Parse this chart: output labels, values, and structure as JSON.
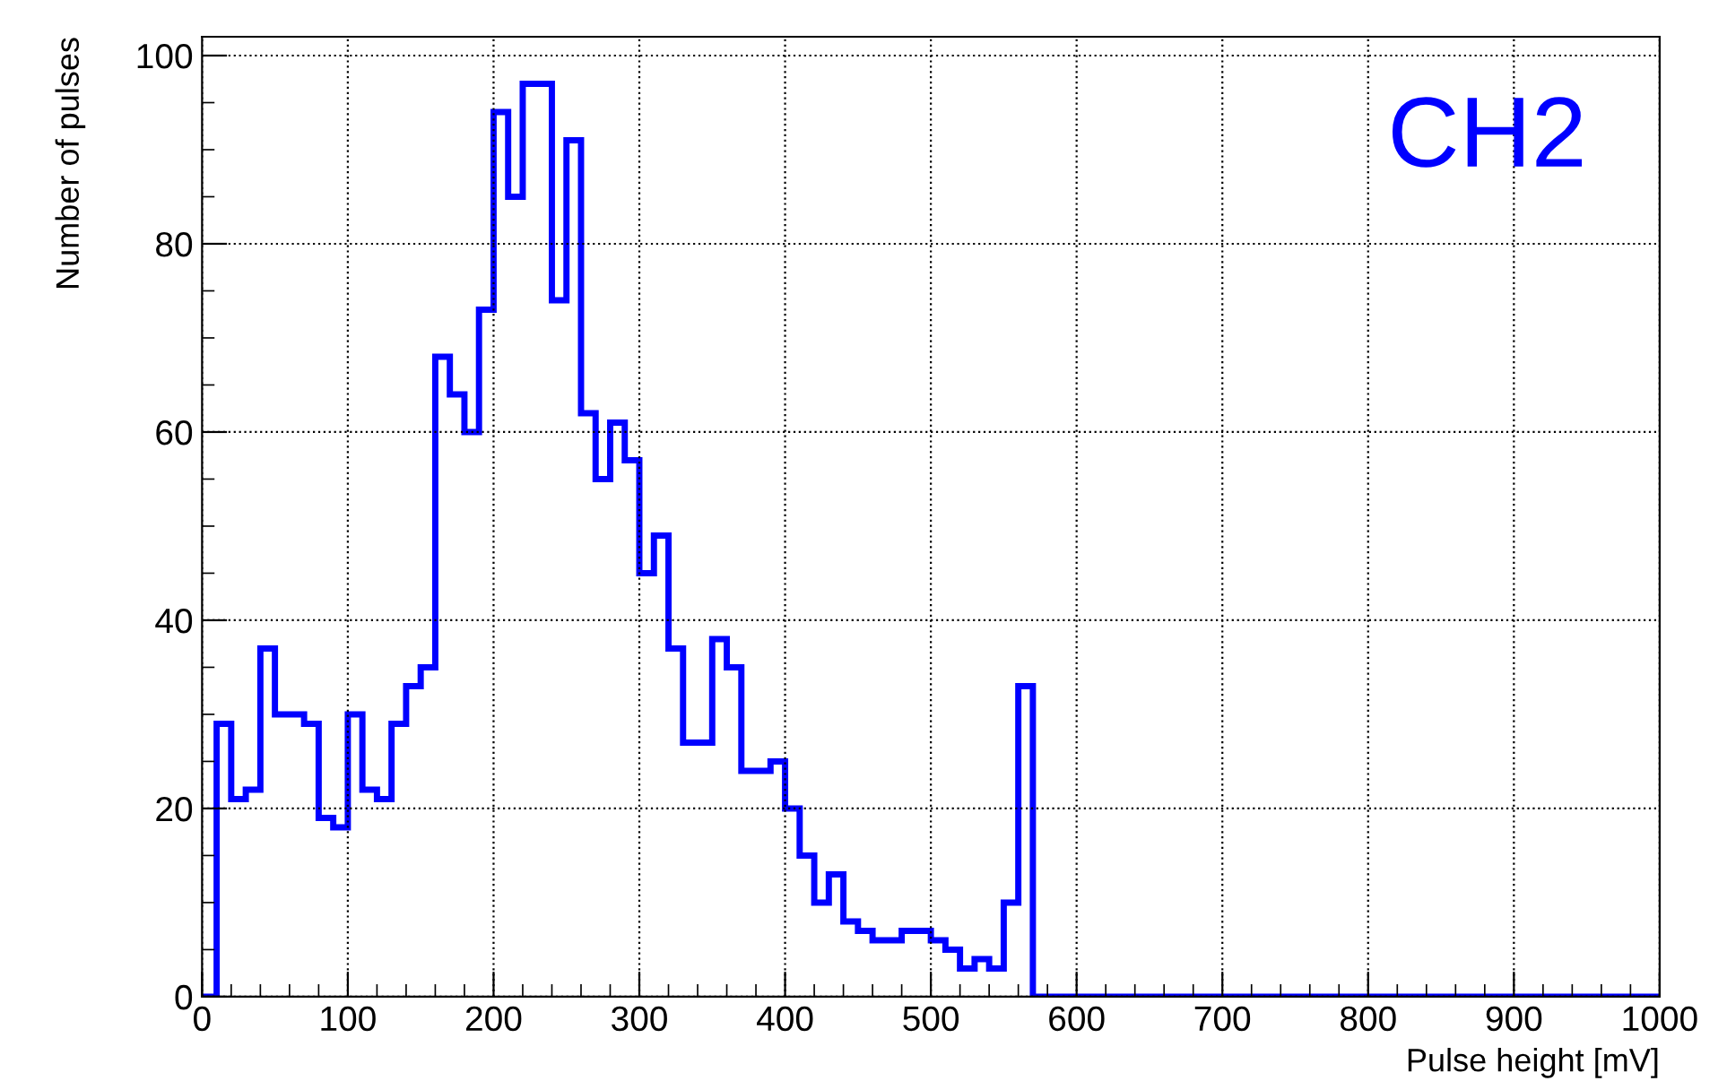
{
  "chart_data": {
    "type": "histogram",
    "xlabel": "Pulse height [mV]",
    "ylabel": "Number of pulses",
    "annotations": [
      "CH2"
    ],
    "bins": [
      0,
      10,
      20,
      30,
      40,
      50,
      60,
      70,
      80,
      90,
      100,
      110,
      120,
      130,
      140,
      150,
      160,
      170,
      180,
      190,
      200,
      210,
      220,
      230,
      240,
      250,
      260,
      270,
      280,
      290,
      300,
      310,
      320,
      330,
      340,
      350,
      360,
      370,
      380,
      390,
      400,
      410,
      420,
      430,
      440,
      450,
      460,
      470,
      480,
      490,
      500,
      510,
      520,
      530,
      540,
      550,
      560,
      570,
      580,
      590,
      600,
      610,
      620,
      630,
      640,
      650,
      660,
      670,
      680,
      690,
      700,
      710,
      720,
      730,
      740,
      750,
      760,
      770,
      780,
      790,
      800,
      810,
      820,
      830,
      840,
      850,
      860,
      870,
      880,
      890,
      900,
      910,
      920,
      930,
      940,
      950,
      960,
      970,
      980,
      990,
      1000
    ],
    "values": [
      0,
      29,
      21,
      22,
      37,
      30,
      30,
      29,
      19,
      18,
      30,
      22,
      21,
      29,
      33,
      35,
      68,
      64,
      60,
      73,
      94,
      85,
      97,
      97,
      74,
      91,
      62,
      55,
      61,
      57,
      45,
      49,
      37,
      27,
      27,
      38,
      35,
      24,
      24,
      25,
      20,
      15,
      10,
      13,
      8,
      7,
      6,
      6,
      7,
      7,
      6,
      5,
      3,
      4,
      3,
      10,
      33,
      0,
      0,
      0,
      0,
      0,
      0,
      0,
      0,
      0,
      0,
      0,
      0,
      0,
      0,
      0,
      0,
      0,
      0,
      0,
      0,
      0,
      0,
      0,
      0,
      0,
      0,
      0,
      0,
      0,
      0,
      0,
      0,
      0,
      0,
      0,
      0,
      0,
      0,
      0,
      0,
      0,
      0,
      0
    ],
    "color": "#0000ff",
    "xlim": [
      0,
      1000
    ],
    "ylim": [
      0,
      102
    ],
    "xticks": [
      0,
      100,
      200,
      300,
      400,
      500,
      600,
      700,
      800,
      900,
      1000
    ],
    "yticks": [
      0,
      20,
      40,
      60,
      80,
      100
    ],
    "grid": true,
    "legend": false
  }
}
